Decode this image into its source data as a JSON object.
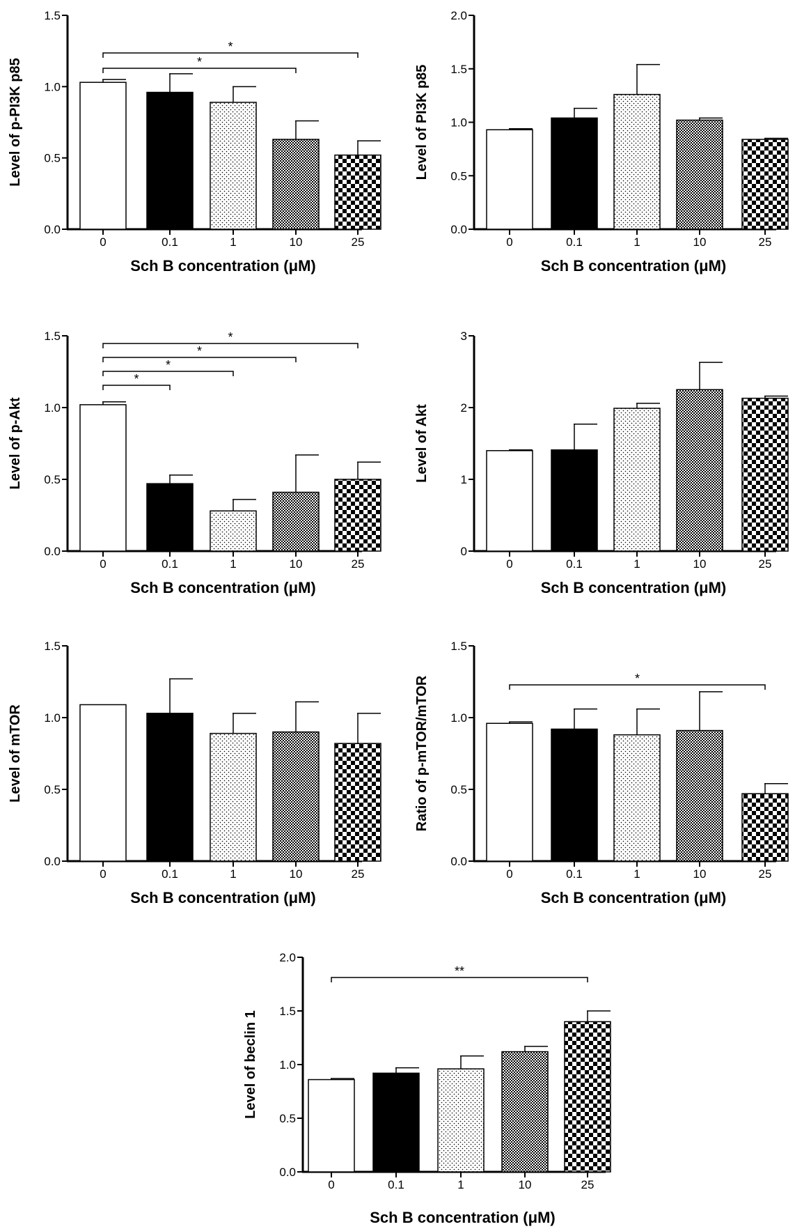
{
  "chart_data": [
    {
      "type": "bar",
      "panel": "p-PI3K p85",
      "ylabel": "Level of p-PI3K p85",
      "xlabel": "Sch B concentration (μM)",
      "categories": [
        "0",
        "0.1",
        "1",
        "10",
        "25"
      ],
      "values": [
        1.03,
        0.96,
        0.89,
        0.63,
        0.52
      ],
      "errors": [
        0.02,
        0.13,
        0.11,
        0.13,
        0.1
      ],
      "ylim": [
        0,
        1.5
      ],
      "yticks": [
        "0.0",
        "0.5",
        "1.0",
        "1.5"
      ],
      "significance": [
        {
          "from": 0,
          "to": 4,
          "label": "*"
        },
        {
          "from": 0,
          "to": 3,
          "label": "*"
        }
      ]
    },
    {
      "type": "bar",
      "panel": "PI3K p85",
      "ylabel": "Level of PI3K p85",
      "xlabel": "Sch B concentration (μM)",
      "categories": [
        "0",
        "0.1",
        "1",
        "10",
        "25"
      ],
      "values": [
        0.93,
        1.04,
        1.26,
        1.02,
        0.84
      ],
      "errors": [
        0.01,
        0.09,
        0.28,
        0.02,
        0.01
      ],
      "ylim": [
        0,
        2.0
      ],
      "yticks": [
        "0.0",
        "0.5",
        "1.0",
        "1.5",
        "2.0"
      ],
      "significance": []
    },
    {
      "type": "bar",
      "panel": "p-Akt",
      "ylabel": "Level of p-Akt",
      "xlabel": "Sch B concentration (μM)",
      "categories": [
        "0",
        "0.1",
        "1",
        "10",
        "25"
      ],
      "values": [
        1.02,
        0.47,
        0.28,
        0.41,
        0.5
      ],
      "errors": [
        0.02,
        0.06,
        0.08,
        0.26,
        0.12
      ],
      "ylim": [
        0,
        1.5
      ],
      "yticks": [
        "0.0",
        "0.5",
        "1.0",
        "1.5"
      ],
      "significance": [
        {
          "from": 0,
          "to": 4,
          "label": "*"
        },
        {
          "from": 0,
          "to": 3,
          "label": "*"
        },
        {
          "from": 0,
          "to": 2,
          "label": "*"
        },
        {
          "from": 0,
          "to": 1,
          "label": "*"
        }
      ]
    },
    {
      "type": "bar",
      "panel": "Akt",
      "ylabel": "Level of Akt",
      "xlabel": "Sch B concentration (μM)",
      "categories": [
        "0",
        "0.1",
        "1",
        "10",
        "25"
      ],
      "values": [
        1.4,
        1.41,
        1.99,
        2.25,
        2.13
      ],
      "errors": [
        0.01,
        0.36,
        0.07,
        0.38,
        0.03
      ],
      "ylim": [
        0,
        3
      ],
      "yticks": [
        "0",
        "1",
        "2",
        "3"
      ],
      "significance": []
    },
    {
      "type": "bar",
      "panel": "mTOR",
      "ylabel": "Level of mTOR",
      "xlabel": "Sch B concentration (μM)",
      "categories": [
        "0",
        "0.1",
        "1",
        "10",
        "25"
      ],
      "values": [
        1.09,
        1.03,
        0.89,
        0.9,
        0.82
      ],
      "errors": [
        0.0,
        0.24,
        0.14,
        0.21,
        0.21
      ],
      "ylim": [
        0,
        1.5
      ],
      "yticks": [
        "0.0",
        "0.5",
        "1.0",
        "1.5"
      ],
      "significance": []
    },
    {
      "type": "bar",
      "panel": "p-mTOR/mTOR",
      "ylabel": "Ratio of p-mTOR/mTOR",
      "xlabel": "Sch B concentration (μM)",
      "categories": [
        "0",
        "0.1",
        "1",
        "10",
        "25"
      ],
      "values": [
        0.96,
        0.92,
        0.88,
        0.91,
        0.47
      ],
      "errors": [
        0.01,
        0.14,
        0.18,
        0.27,
        0.07
      ],
      "ylim": [
        0,
        1.5
      ],
      "yticks": [
        "0.0",
        "0.5",
        "1.0",
        "1.5"
      ],
      "significance": [
        {
          "from": 0,
          "to": 4,
          "label": "*"
        }
      ]
    },
    {
      "type": "bar",
      "panel": "beclin 1",
      "ylabel": "Level of beclin 1",
      "xlabel": "Sch B concentration (μM)",
      "categories": [
        "0",
        "0.1",
        "1",
        "10",
        "25"
      ],
      "values": [
        0.86,
        0.92,
        0.96,
        1.12,
        1.4
      ],
      "errors": [
        0.01,
        0.05,
        0.12,
        0.05,
        0.1
      ],
      "ylim": [
        0,
        2.0
      ],
      "yticks": [
        "0.0",
        "0.5",
        "1.0",
        "1.5",
        "2.0"
      ],
      "significance": [
        {
          "from": 0,
          "to": 4,
          "label": "**"
        }
      ]
    }
  ]
}
